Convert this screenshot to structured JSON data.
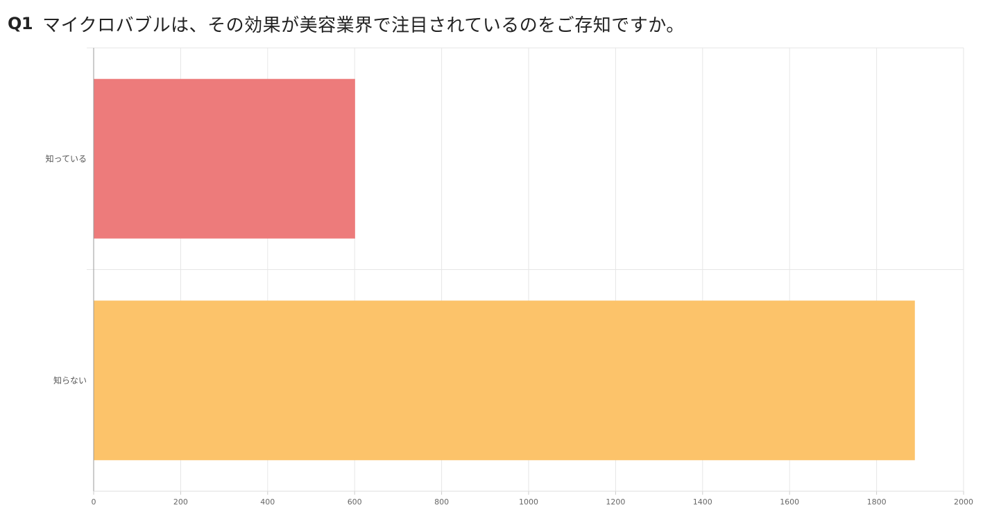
{
  "question": {
    "number": "Q1",
    "text": "マイクロバブルは、その効果が美容業界で注目されているのをご存知ですか。"
  },
  "chart_data": {
    "type": "bar",
    "orientation": "horizontal",
    "categories": [
      "知っている",
      "知らない"
    ],
    "values": [
      601,
      1888
    ],
    "colors": [
      "#ed7b7b",
      "#fcc36a"
    ],
    "xlim": [
      0,
      2000
    ],
    "xticks": [
      0,
      200,
      400,
      600,
      800,
      1000,
      1200,
      1400,
      1600,
      1800,
      2000
    ],
    "grid": true,
    "legend": "none",
    "title": "",
    "xlabel": "",
    "ylabel": ""
  }
}
